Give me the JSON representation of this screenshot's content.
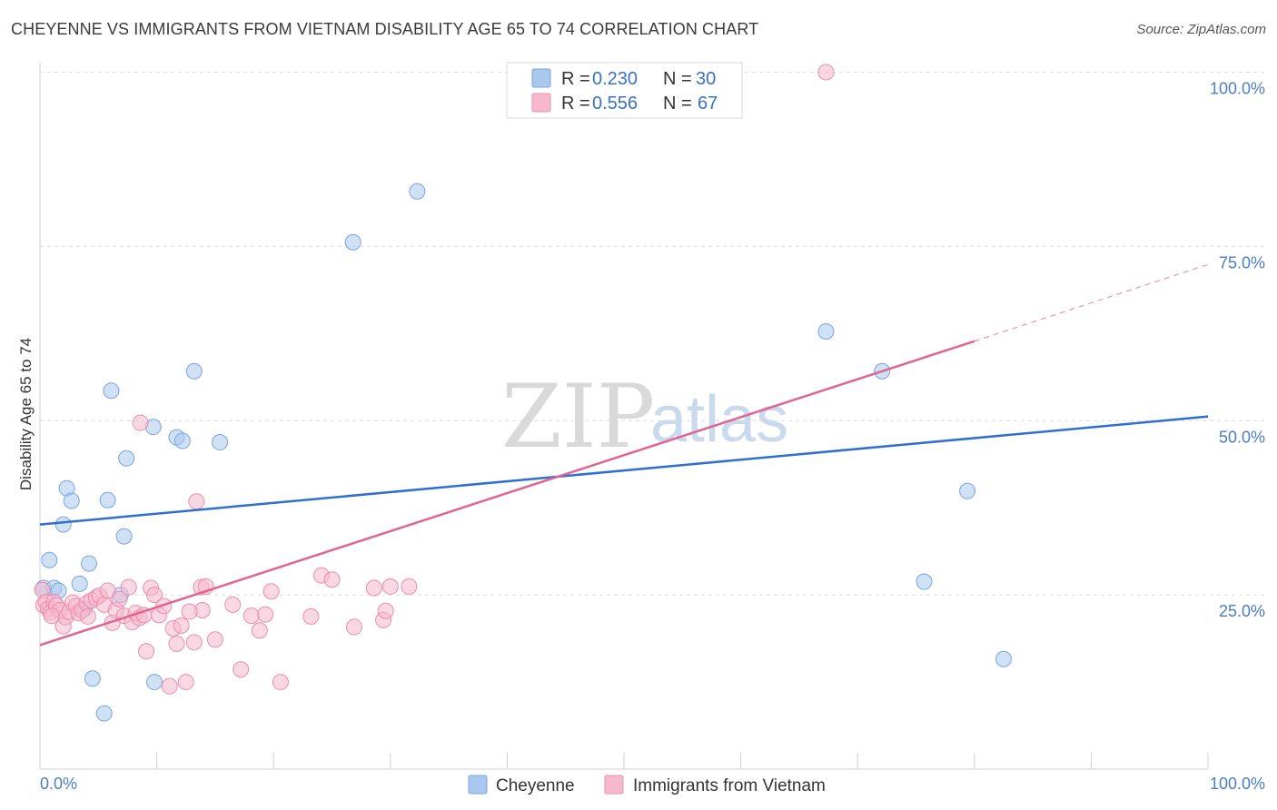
{
  "title": "CHEYENNE VS IMMIGRANTS FROM VIETNAM DISABILITY AGE 65 TO 74 CORRELATION CHART",
  "source": "Source: ZipAtlas.com",
  "watermark": {
    "zip": "ZIP",
    "atlas": "atlas"
  },
  "chart_data": {
    "type": "scatter",
    "xlabel": "",
    "ylabel": "Disability Age 65 to 74",
    "xlim": [
      0,
      100
    ],
    "ylim": [
      0,
      100
    ],
    "x_tick_labels": {
      "left": "0.0%",
      "right": "100.0%"
    },
    "y_ticks": [
      {
        "value": 25,
        "label": "25.0%"
      },
      {
        "value": 50,
        "label": "50.0%"
      },
      {
        "value": 75,
        "label": "75.0%"
      },
      {
        "value": 100,
        "label": "100.0%"
      }
    ],
    "legend_top": [
      {
        "r_label": "R = ",
        "r_value": "0.230",
        "n_label": "N = ",
        "n_value": "30",
        "color": "#a9c8ee"
      },
      {
        "r_label": "R = ",
        "r_value": "0.556",
        "n_label": "N = ",
        "n_value": "67",
        "color": "#f5b8cc"
      }
    ],
    "series": [
      {
        "name": "Cheyenne",
        "color": "#a9c8ee",
        "stroke": "#7aa6dd",
        "line_color": "#2f6fd0",
        "trend": {
          "x0": 0,
          "y0": 35.1,
          "x1": 100,
          "y1": 50.6
        },
        "points": [
          [
            0.3,
            26
          ],
          [
            0.8,
            30
          ],
          [
            1.2,
            26
          ],
          [
            1.6,
            25.6
          ],
          [
            2,
            35.1
          ],
          [
            2.3,
            40.3
          ],
          [
            2.7,
            38.5
          ],
          [
            3.4,
            26.6
          ],
          [
            4.2,
            29.5
          ],
          [
            4.5,
            13
          ],
          [
            5.5,
            8
          ],
          [
            5.8,
            38.6
          ],
          [
            6.1,
            54.3
          ],
          [
            7.2,
            33.4
          ],
          [
            7.4,
            44.6
          ],
          [
            9.7,
            49.1
          ],
          [
            9.8,
            12.5
          ],
          [
            11.7,
            47.6
          ],
          [
            12.2,
            47.1
          ],
          [
            13.2,
            57.1
          ],
          [
            15.4,
            46.9
          ],
          [
            26.8,
            75.6
          ],
          [
            32.3,
            82.9
          ],
          [
            67.3,
            62.8
          ],
          [
            75.7,
            26.9
          ],
          [
            72.1,
            57.1
          ],
          [
            79.4,
            39.9
          ],
          [
            82.5,
            15.8
          ],
          [
            3.8,
            23
          ],
          [
            6.9,
            25
          ]
        ]
      },
      {
        "name": "Immigrants from Vietnam",
        "color": "#f5b8cc",
        "stroke": "#ea8eae",
        "line_color": "#e06592",
        "trend": {
          "x0": 0,
          "y0": 17.8,
          "x1": 80,
          "y1": 61.4
        },
        "trend_dashed": {
          "x0": 80,
          "y0": 61.4,
          "x1": 100,
          "y1": 72.4
        },
        "points": [
          [
            0.2,
            25.7
          ],
          [
            0.3,
            23.5
          ],
          [
            0.5,
            24
          ],
          [
            0.7,
            23
          ],
          [
            0.9,
            22.5
          ],
          [
            1.2,
            24
          ],
          [
            1.4,
            23.5
          ],
          [
            1.7,
            22.8
          ],
          [
            2,
            20.5
          ],
          [
            2.2,
            21.8
          ],
          [
            2.5,
            22.6
          ],
          [
            2.8,
            23.9
          ],
          [
            3.1,
            23.4
          ],
          [
            3.3,
            22.4
          ],
          [
            3.6,
            22.8
          ],
          [
            4,
            23.8
          ],
          [
            4.4,
            24.2
          ],
          [
            4.8,
            24.6
          ],
          [
            5.1,
            24.9
          ],
          [
            5.5,
            23.6
          ],
          [
            5.8,
            25.6
          ],
          [
            6.2,
            21
          ],
          [
            6.5,
            22.8
          ],
          [
            6.8,
            24.4
          ],
          [
            7.2,
            22
          ],
          [
            7.6,
            26.1
          ],
          [
            7.9,
            21.1
          ],
          [
            8.2,
            22.4
          ],
          [
            8.5,
            21.7
          ],
          [
            8.9,
            22.1
          ],
          [
            8.6,
            49.7
          ],
          [
            9.1,
            16.9
          ],
          [
            9.5,
            26
          ],
          [
            9.8,
            25
          ],
          [
            10.2,
            22.1
          ],
          [
            10.6,
            23.4
          ],
          [
            11.1,
            11.9
          ],
          [
            11.4,
            20.2
          ],
          [
            11.7,
            18
          ],
          [
            12.1,
            20.6
          ],
          [
            12.5,
            12.5
          ],
          [
            13.2,
            18.2
          ],
          [
            13.4,
            38.4
          ],
          [
            13.9,
            22.8
          ],
          [
            13.8,
            26.1
          ],
          [
            14.2,
            26.2
          ],
          [
            15,
            18.6
          ],
          [
            16.5,
            23.6
          ],
          [
            17.2,
            14.3
          ],
          [
            18.1,
            22
          ],
          [
            18.8,
            19.9
          ],
          [
            19.3,
            22.2
          ],
          [
            19.8,
            25.5
          ],
          [
            20.6,
            12.5
          ],
          [
            23.2,
            21.9
          ],
          [
            24.1,
            27.8
          ],
          [
            25,
            27.2
          ],
          [
            26.9,
            20.4
          ],
          [
            28.6,
            26
          ],
          [
            29.4,
            21.4
          ],
          [
            29.6,
            22.7
          ],
          [
            30,
            26.2
          ],
          [
            31.6,
            26.2
          ],
          [
            67.3,
            100
          ],
          [
            1,
            22
          ],
          [
            4.1,
            21.9
          ],
          [
            12.8,
            22.6
          ]
        ]
      }
    ]
  }
}
